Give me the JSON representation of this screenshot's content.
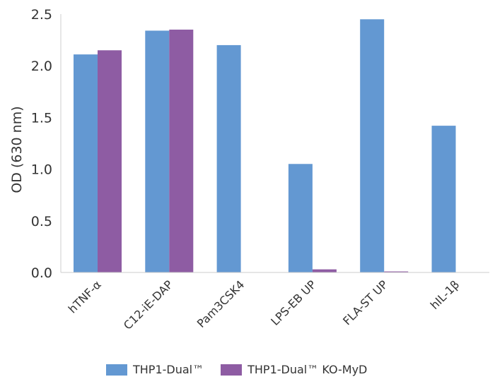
{
  "chart_data": {
    "type": "bar",
    "categories": [
      "hTNF-α",
      "C12-iE-DAP",
      "Pam3CSK4",
      "LPS-EB UP",
      "FLA-ST UP",
      "hIL-1β"
    ],
    "series": [
      {
        "name": "THP1-Dual™",
        "color": "#6398d2",
        "values": [
          2.11,
          2.34,
          2.2,
          1.05,
          2.45,
          1.42
        ]
      },
      {
        "name": "THP1-Dual™ KO-MyD",
        "color": "#8e5ca3",
        "values": [
          2.15,
          2.35,
          0.0,
          0.03,
          0.01,
          0.0
        ]
      }
    ],
    "ylabel": "OD (630 nm)",
    "xlabel": "",
    "ylim": [
      0,
      2.5
    ],
    "yticks": [
      "0.0",
      "0.5",
      "1.0",
      "1.5",
      "2.0",
      "2.5"
    ],
    "grid": false,
    "legend_position": "bottom"
  }
}
